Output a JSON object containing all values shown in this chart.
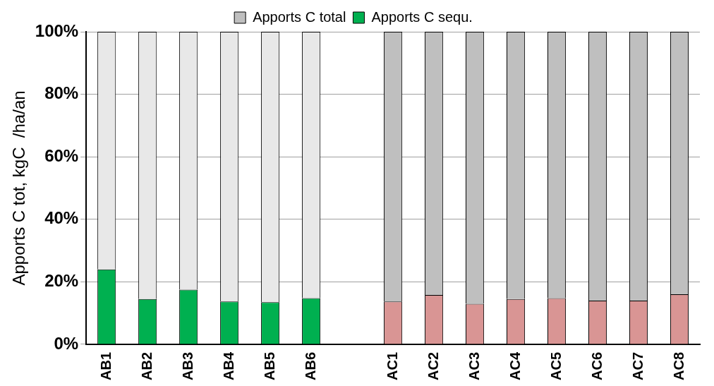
{
  "chart_data": {
    "type": "bar",
    "stacked": true,
    "ylabel": "Apports C tot, kgC  /ha/an",
    "categories": [
      "AB1",
      "AB2",
      "AB3",
      "AB4",
      "AB5",
      "AB6",
      null,
      "AC1",
      "AC2",
      "AC3",
      "AC4",
      "AC5",
      "AC6",
      "AC7",
      "AC8"
    ],
    "series": [
      {
        "name": "Apports C sequ.",
        "color": "#00b050",
        "colors": [
          "#00b050",
          "#00b050",
          "#00b050",
          "#00b050",
          "#00b050",
          "#00b050",
          "#00b050",
          "#d99594",
          "#d99594",
          "#d99594",
          "#d99594",
          "#d99594",
          "#d99594",
          "#d99594",
          "#d99594"
        ],
        "values": [
          24,
          14.5,
          17.5,
          13.7,
          13.5,
          14.8,
          null,
          13.7,
          15.8,
          13,
          14.5,
          14.8,
          14,
          14,
          16
        ]
      },
      {
        "name": "Apports C total",
        "color": "#bfbfbf",
        "colors": [
          "#e8e8e8",
          "#e8e8e8",
          "#e8e8e8",
          "#e8e8e8",
          "#e8e8e8",
          "#e8e8e8",
          "#e8e8e8",
          "#bfbfbf",
          "#bfbfbf",
          "#bfbfbf",
          "#bfbfbf",
          "#bfbfbf",
          "#bfbfbf",
          "#bfbfbf",
          "#bfbfbf"
        ],
        "values": [
          76,
          85.5,
          82.5,
          86.3,
          86.5,
          85.2,
          null,
          86.3,
          84.2,
          87,
          85.5,
          85.2,
          86,
          86,
          84
        ]
      }
    ],
    "ylim": [
      0,
      100
    ],
    "yticks": [
      {
        "value": 0,
        "label": "0%"
      },
      {
        "value": 20,
        "label": "20%"
      },
      {
        "value": 40,
        "label": "40%"
      },
      {
        "value": 60,
        "label": "60%"
      },
      {
        "value": 80,
        "label": "80%"
      },
      {
        "value": 100,
        "label": "100%"
      }
    ],
    "grid": "y",
    "legend": "top"
  }
}
